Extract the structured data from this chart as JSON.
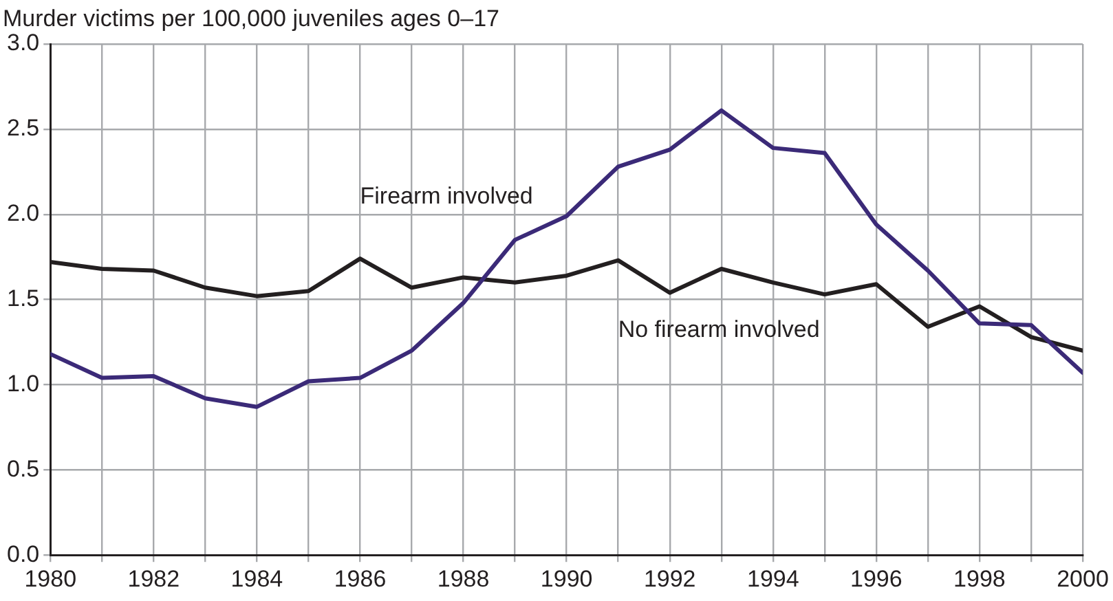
{
  "chart_data": {
    "type": "line",
    "ylabel": "Murder victims per 100,000 juveniles ages 0–17",
    "x": [
      1980,
      1981,
      1982,
      1983,
      1984,
      1985,
      1986,
      1987,
      1988,
      1989,
      1990,
      1991,
      1992,
      1993,
      1994,
      1995,
      1996,
      1997,
      1998,
      1999,
      2000
    ],
    "series": [
      {
        "name": "Firearm involved",
        "color": "#3b2a78",
        "values": [
          1.18,
          1.04,
          1.05,
          0.92,
          0.87,
          1.02,
          1.04,
          1.2,
          1.48,
          1.85,
          1.99,
          2.28,
          2.38,
          2.61,
          2.39,
          2.36,
          1.94,
          1.67,
          1.36,
          1.35,
          1.07
        ]
      },
      {
        "name": "No firearm involved",
        "color": "#231f20",
        "values": [
          1.72,
          1.68,
          1.67,
          1.57,
          1.52,
          1.55,
          1.74,
          1.57,
          1.63,
          1.6,
          1.64,
          1.73,
          1.54,
          1.68,
          1.6,
          1.53,
          1.59,
          1.34,
          1.46,
          1.28,
          1.2
        ]
      }
    ],
    "xlim": [
      1980,
      2000
    ],
    "xticks": [
      1980,
      {
        "value": 1981,
        "label": null
      },
      1982,
      {
        "value": 1983,
        "label": null
      },
      1984,
      {
        "value": 1985,
        "label": null
      },
      1986,
      {
        "value": 1987,
        "label": null
      },
      1988,
      {
        "value": 1989,
        "label": null
      },
      1990,
      {
        "value": 1991,
        "label": null
      },
      1992,
      {
        "value": 1993,
        "label": null
      },
      1994,
      {
        "value": 1995,
        "label": null
      },
      1996,
      {
        "value": 1997,
        "label": null
      },
      1998,
      {
        "value": 1999,
        "label": null
      },
      2000
    ],
    "ylim": [
      0,
      3
    ],
    "yticks": [
      {
        "value": 0,
        "label": "0.0"
      },
      {
        "value": 0.5,
        "label": "0.5"
      },
      {
        "value": 1,
        "label": "1.0"
      },
      {
        "value": 1.5,
        "label": "1.5"
      },
      {
        "value": 2,
        "label": "2.0"
      },
      {
        "value": 2.5,
        "label": "2.5"
      },
      {
        "value": 3,
        "label": "3.0"
      }
    ],
    "grid": true,
    "legend": false,
    "marker": "none",
    "line_style": "solid"
  }
}
